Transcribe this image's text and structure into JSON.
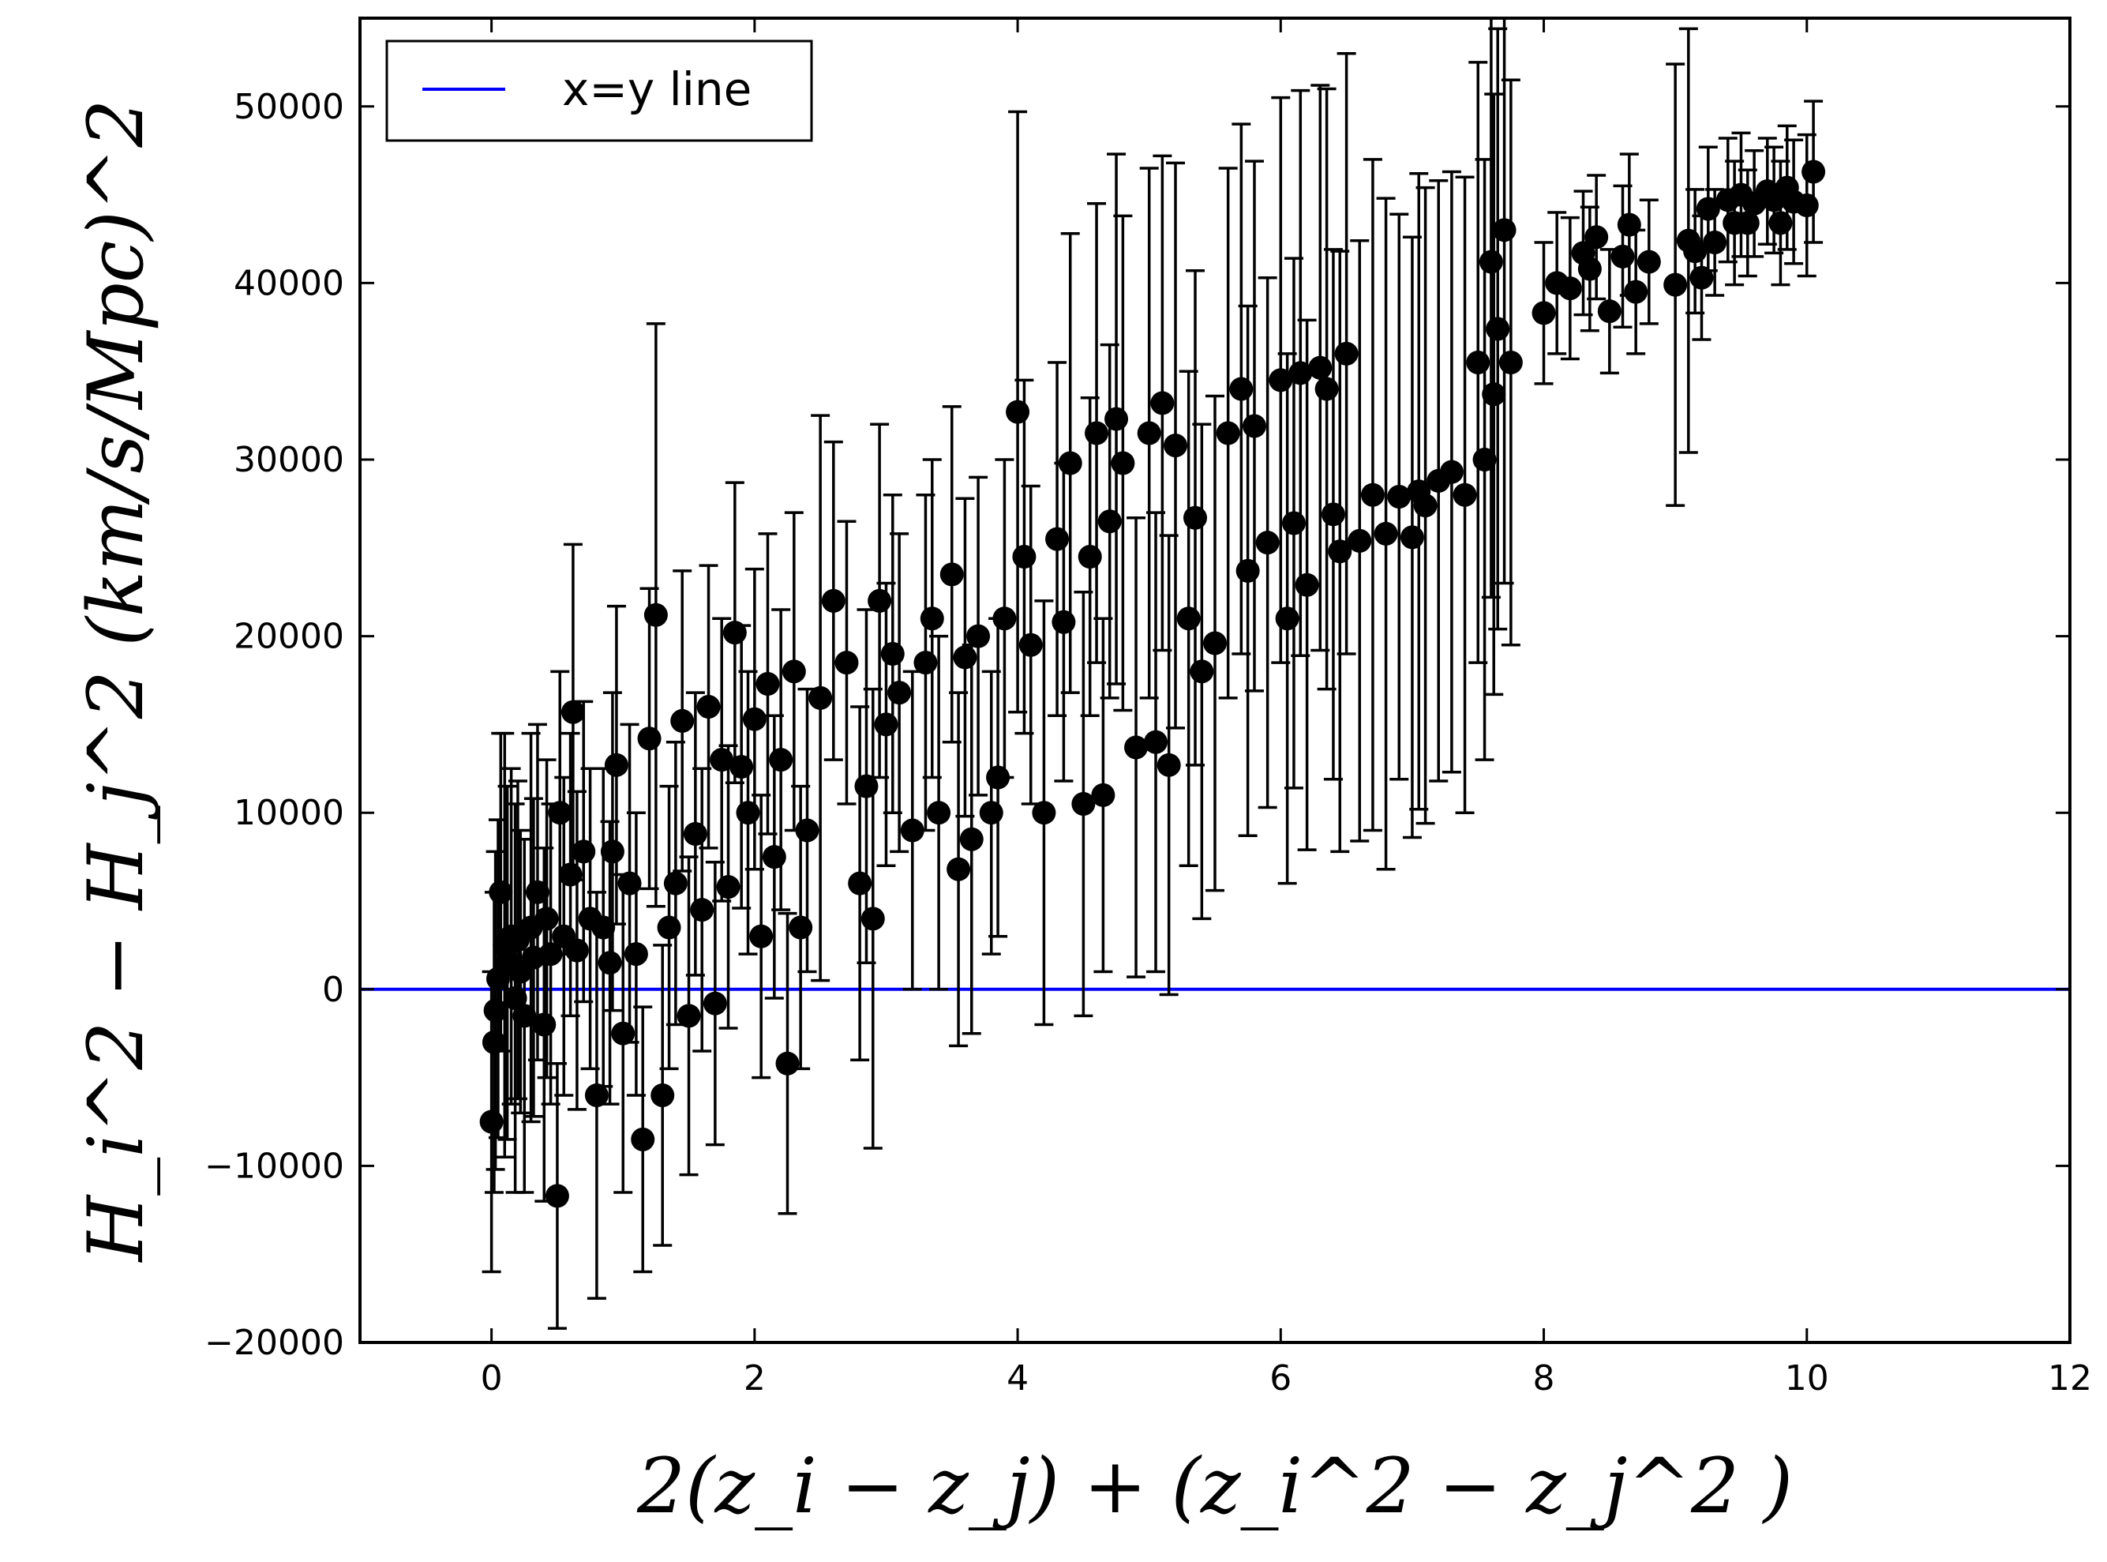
{
  "chart_data": {
    "type": "scatter",
    "title": "",
    "xlabel": "2(z_i − z_j) + (z_i^2 − z_j^2 )",
    "ylabel": "H_i^2 − H_j^2 (km/s/Mpc)^2",
    "xlim": [
      -1,
      12
    ],
    "ylim": [
      -20000,
      55000
    ],
    "x_ticks": [
      0,
      2,
      4,
      6,
      8,
      10,
      12
    ],
    "y_ticks": [
      -20000,
      -10000,
      0,
      10000,
      20000,
      30000,
      40000,
      50000
    ],
    "x_tick_labels": [
      "0",
      "2",
      "4",
      "6",
      "8",
      "10",
      "12"
    ],
    "y_tick_labels": [
      "−20000",
      "−10000",
      "0",
      "10000",
      "20000",
      "30000",
      "40000",
      "50000"
    ],
    "grid": false,
    "legend": {
      "placement": "top-left",
      "entries": [
        {
          "label": "x=y line",
          "color": "#0000ff"
        }
      ]
    },
    "colors": {
      "points": "#000000",
      "reference_line": "#0000ff"
    },
    "series": [
      {
        "name": "x=y line",
        "type": "line",
        "x": [
          -1,
          12
        ],
        "y": [
          0,
          0
        ]
      },
      {
        "type": "scatter_errorbar",
        "points": [
          [
            0.0,
            -7500,
            8500
          ],
          [
            0.02,
            -3000,
            8500
          ],
          [
            0.03,
            -1200,
            9000
          ],
          [
            0.05,
            600,
            9000
          ],
          [
            0.07,
            5500,
            9000
          ],
          [
            0.1,
            2500,
            12000
          ],
          [
            0.12,
            1500,
            10000
          ],
          [
            0.15,
            3000,
            9500
          ],
          [
            0.18,
            -500,
            11000
          ],
          [
            0.2,
            2800,
            9000
          ],
          [
            0.22,
            1000,
            8000
          ],
          [
            0.25,
            -1500,
            10000
          ],
          [
            0.3,
            3500,
            11000
          ],
          [
            0.32,
            1800,
            9000
          ],
          [
            0.35,
            5500,
            9500
          ],
          [
            0.4,
            -2000,
            10000
          ],
          [
            0.42,
            4000,
            9000
          ],
          [
            0.45,
            2000,
            8500
          ],
          [
            0.5,
            -11700,
            7500
          ],
          [
            0.52,
            10000,
            8000
          ],
          [
            0.55,
            3000,
            9000
          ],
          [
            0.6,
            6500,
            8000
          ],
          [
            0.62,
            15700,
            9500
          ],
          [
            0.65,
            2200,
            9000
          ],
          [
            0.7,
            7800,
            8500
          ],
          [
            0.75,
            4000,
            8500
          ],
          [
            0.8,
            -6000,
            11500
          ],
          [
            0.85,
            3500,
            9000
          ],
          [
            0.9,
            1500,
            8000
          ],
          [
            0.92,
            7800,
            9000
          ],
          [
            0.95,
            12700,
            9000
          ],
          [
            1.0,
            -2500,
            9000
          ],
          [
            1.05,
            6000,
            9000
          ],
          [
            1.1,
            2000,
            8000
          ],
          [
            1.15,
            -8500,
            7500
          ],
          [
            1.2,
            14200,
            8500
          ],
          [
            1.25,
            21200,
            16500
          ],
          [
            1.3,
            -6000,
            8500
          ],
          [
            1.35,
            3500,
            8000
          ],
          [
            1.4,
            6000,
            8000
          ],
          [
            1.45,
            15200,
            8500
          ],
          [
            1.5,
            -1500,
            9000
          ],
          [
            1.55,
            8800,
            8000
          ],
          [
            1.6,
            4500,
            8000
          ],
          [
            1.65,
            16000,
            8000
          ],
          [
            1.7,
            -800,
            8000
          ],
          [
            1.75,
            13000,
            8000
          ],
          [
            1.8,
            5800,
            8000
          ],
          [
            1.85,
            20200,
            8500
          ],
          [
            1.9,
            12600,
            8000
          ],
          [
            1.95,
            10000,
            8000
          ],
          [
            2.0,
            15300,
            8500
          ],
          [
            2.05,
            3000,
            8000
          ],
          [
            2.1,
            17300,
            8500
          ],
          [
            2.15,
            7500,
            8000
          ],
          [
            2.2,
            13000,
            8500
          ],
          [
            2.25,
            -4200,
            8500
          ],
          [
            2.3,
            18000,
            9000
          ],
          [
            2.35,
            3500,
            8000
          ],
          [
            2.4,
            9000,
            8000
          ],
          [
            2.5,
            16500,
            16000
          ],
          [
            2.6,
            22000,
            9000
          ],
          [
            2.7,
            18500,
            8000
          ],
          [
            2.8,
            6000,
            10000
          ],
          [
            2.85,
            11500,
            10000
          ],
          [
            2.9,
            4000,
            13000
          ],
          [
            2.95,
            22000,
            10000
          ],
          [
            3.0,
            15000,
            8000
          ],
          [
            3.05,
            19000,
            9000
          ],
          [
            3.1,
            16800,
            9000
          ],
          [
            3.2,
            9000,
            9000
          ],
          [
            3.3,
            18500,
            9500
          ],
          [
            3.35,
            21000,
            9000
          ],
          [
            3.4,
            10000,
            10000
          ],
          [
            3.5,
            23500,
            9500
          ],
          [
            3.55,
            6800,
            10000
          ],
          [
            3.6,
            18800,
            9000
          ],
          [
            3.65,
            8500,
            11000
          ],
          [
            3.7,
            20000,
            9000
          ],
          [
            3.8,
            10000,
            8000
          ],
          [
            3.85,
            12000,
            9000
          ],
          [
            3.9,
            21000,
            9000
          ],
          [
            4.0,
            32700,
            17000
          ],
          [
            4.05,
            24500,
            10000
          ],
          [
            4.1,
            19500,
            9000
          ],
          [
            4.2,
            10000,
            12000
          ],
          [
            4.3,
            25500,
            10000
          ],
          [
            4.35,
            20800,
            9000
          ],
          [
            4.4,
            29800,
            13000
          ],
          [
            4.5,
            10500,
            12000
          ],
          [
            4.55,
            24500,
            9000
          ],
          [
            4.6,
            31500,
            13000
          ],
          [
            4.65,
            11000,
            10000
          ],
          [
            4.7,
            26500,
            10000
          ],
          [
            4.75,
            32300,
            15000
          ],
          [
            4.8,
            29800,
            14000
          ],
          [
            4.9,
            13700,
            13000
          ],
          [
            5.0,
            31500,
            15000
          ],
          [
            5.05,
            14000,
            13000
          ],
          [
            5.1,
            33200,
            14000
          ],
          [
            5.15,
            12700,
            13000
          ],
          [
            5.2,
            30800,
            16000
          ],
          [
            5.3,
            21000,
            14000
          ],
          [
            5.35,
            26700,
            14000
          ],
          [
            5.4,
            18000,
            14000
          ],
          [
            5.5,
            19600,
            14000
          ],
          [
            5.6,
            31500,
            15000
          ],
          [
            5.7,
            34000,
            15000
          ],
          [
            5.75,
            23700,
            15000
          ],
          [
            5.8,
            31900,
            15000
          ],
          [
            5.9,
            25300,
            15000
          ],
          [
            6.0,
            34500,
            16000
          ],
          [
            6.05,
            21000,
            15000
          ],
          [
            6.1,
            26400,
            15000
          ],
          [
            6.15,
            34900,
            16000
          ],
          [
            6.2,
            22900,
            15000
          ],
          [
            6.3,
            35200,
            16000
          ],
          [
            6.35,
            34000,
            17000
          ],
          [
            6.4,
            26900,
            15000
          ],
          [
            6.45,
            24800,
            17000
          ],
          [
            6.5,
            36000,
            17000
          ],
          [
            6.6,
            25400,
            17000
          ],
          [
            6.7,
            28000,
            19000
          ],
          [
            6.8,
            25800,
            19000
          ],
          [
            6.9,
            27900,
            16000
          ],
          [
            7.0,
            25600,
            17000
          ],
          [
            7.05,
            28200,
            18000
          ],
          [
            7.1,
            27400,
            18000
          ],
          [
            7.2,
            28800,
            17000
          ],
          [
            7.3,
            29300,
            17000
          ],
          [
            7.4,
            28000,
            18000
          ],
          [
            7.5,
            35500,
            17000
          ],
          [
            7.55,
            30000,
            17000
          ],
          [
            7.6,
            41200,
            19000
          ],
          [
            7.62,
            33700,
            17000
          ],
          [
            7.65,
            37400,
            17000
          ],
          [
            7.7,
            43000,
            20000
          ],
          [
            7.75,
            35500,
            16000
          ],
          [
            8.0,
            38300,
            4000
          ],
          [
            8.1,
            40000,
            4000
          ],
          [
            8.2,
            39700,
            4000
          ],
          [
            8.3,
            41700,
            3500
          ],
          [
            8.35,
            40800,
            3500
          ],
          [
            8.4,
            42600,
            3500
          ],
          [
            8.5,
            38400,
            3500
          ],
          [
            8.6,
            41500,
            4000
          ],
          [
            8.65,
            43300,
            4000
          ],
          [
            8.7,
            39500,
            3500
          ],
          [
            8.8,
            41200,
            3500
          ],
          [
            9.0,
            39900,
            12500
          ],
          [
            9.1,
            42400,
            12000
          ],
          [
            9.15,
            41800,
            3500
          ],
          [
            9.2,
            40300,
            3500
          ],
          [
            9.25,
            44200,
            3500
          ],
          [
            9.3,
            42300,
            3000
          ],
          [
            9.4,
            44700,
            3500
          ],
          [
            9.45,
            43400,
            3500
          ],
          [
            9.5,
            45000,
            3500
          ],
          [
            9.55,
            43400,
            3000
          ],
          [
            9.6,
            44500,
            3000
          ],
          [
            9.7,
            45200,
            3000
          ],
          [
            9.75,
            44700,
            3000
          ],
          [
            9.8,
            43400,
            3500
          ],
          [
            9.85,
            45400,
            3500
          ],
          [
            9.9,
            44600,
            3500
          ],
          [
            10.0,
            44400,
            4000
          ],
          [
            10.05,
            46300,
            4000
          ]
        ]
      }
    ]
  }
}
